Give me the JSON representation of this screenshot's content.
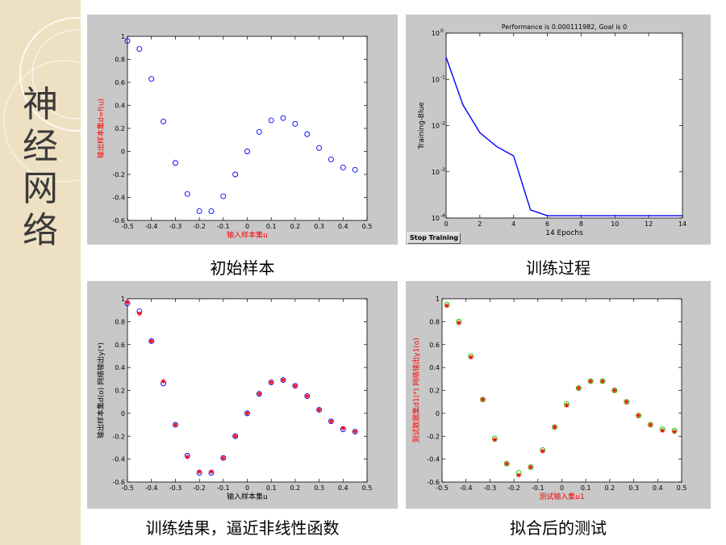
{
  "sidebar": {
    "title_chars": [
      "神",
      "经",
      "网",
      "络"
    ]
  },
  "captions": [
    "初始样本",
    "训练过程",
    "训练结果，逼近非线性函数",
    "拟合后的测试"
  ],
  "colors": {
    "sidebar_bg": "#eee0c2",
    "panel_bg": "#c8c8c8",
    "blue": "#0000ff",
    "red": "#ff0000",
    "green": "#00cc00"
  },
  "chart_data": [
    {
      "type": "scatter",
      "title": "",
      "xlabel": "输入样本集u",
      "ylabel": "输出样本集d=f(u)",
      "xlim": [
        -0.5,
        0.5
      ],
      "ylim": [
        -0.6,
        1
      ],
      "xticks": [
        -0.5,
        -0.4,
        -0.3,
        -0.2,
        -0.1,
        0,
        0.1,
        0.2,
        0.3,
        0.4,
        0.5
      ],
      "yticks": [
        -0.6,
        -0.4,
        -0.2,
        0,
        0.2,
        0.4,
        0.6,
        0.8,
        1
      ],
      "tick_labels_x": [
        "-0.5",
        "-0.4",
        "-0.3",
        "-0.2",
        "-0.1",
        "0",
        "0.1",
        "0.2",
        "0.3",
        "0.4",
        "0.5"
      ],
      "tick_labels_y": [
        "-0.6",
        "-0.4",
        "-0.2",
        "0",
        "0.2",
        "0.4",
        "0.6",
        "0.8",
        "1"
      ],
      "series": [
        {
          "marker": "circle",
          "color": "#0000ff",
          "x": [
            -0.5,
            -0.45,
            -0.4,
            -0.35,
            -0.3,
            -0.25,
            -0.2,
            -0.15,
            -0.1,
            -0.05,
            0,
            0.05,
            0.1,
            0.15,
            0.2,
            0.25,
            0.3,
            0.35,
            0.4,
            0.45
          ],
          "y": [
            0.96,
            0.89,
            0.63,
            0.26,
            -0.1,
            -0.37,
            -0.52,
            -0.52,
            -0.39,
            -0.2,
            0.0,
            0.17,
            0.27,
            0.29,
            0.24,
            0.15,
            0.03,
            -0.07,
            -0.14,
            -0.16
          ]
        }
      ]
    },
    {
      "type": "line",
      "title": "Performance is 0.000111982, Goal is 0",
      "xlabel": "14 Epochs",
      "ylabel": "Training-Blue",
      "xlim": [
        0,
        14
      ],
      "ylim": [
        0.0001,
        1
      ],
      "yscale": "log",
      "xticks": [
        0,
        2,
        4,
        6,
        8,
        10,
        12,
        14
      ],
      "tick_labels_x": [
        "0",
        "2",
        "4",
        "6",
        "8",
        "10",
        "12",
        "14"
      ],
      "yticks": [
        0.0001,
        0.001,
        0.01,
        0.1,
        1
      ],
      "tick_labels_y": [
        {
          "base": "10",
          "exp": "-4"
        },
        {
          "base": "10",
          "exp": "-3"
        },
        {
          "base": "10",
          "exp": "-2"
        },
        {
          "base": "10",
          "exp": "-1"
        },
        {
          "base": "10",
          "exp": "0"
        }
      ],
      "button_label": "Stop Training",
      "series": [
        {
          "color": "#0000ff",
          "x": [
            0,
            1,
            2,
            3,
            4,
            5,
            6,
            7,
            8,
            9,
            10,
            11,
            12,
            13,
            14
          ],
          "y": [
            0.3,
            0.028,
            0.007,
            0.0035,
            0.0022,
            0.00015,
            0.000112,
            0.000112,
            0.000112,
            0.000112,
            0.000112,
            0.000112,
            0.000112,
            0.000112,
            0.000112
          ]
        }
      ]
    },
    {
      "type": "scatter",
      "title": "",
      "xlabel": "输入样本集u",
      "ylabel": "输出样本集d(o)  网络输出y(*)",
      "xlim": [
        -0.5,
        0.5
      ],
      "ylim": [
        -0.6,
        1
      ],
      "xticks": [
        -0.5,
        -0.4,
        -0.3,
        -0.2,
        -0.1,
        0,
        0.1,
        0.2,
        0.3,
        0.4,
        0.5
      ],
      "yticks": [
        -0.6,
        -0.4,
        -0.2,
        0,
        0.2,
        0.4,
        0.6,
        0.8,
        1
      ],
      "tick_labels_x": [
        "-0.5",
        "-0.4",
        "-0.3",
        "-0.2",
        "-0.1",
        "0",
        "0.1",
        "0.2",
        "0.3",
        "0.4",
        "0.5"
      ],
      "tick_labels_y": [
        "-0.6",
        "-0.4",
        "-0.2",
        "0",
        "0.2",
        "0.4",
        "0.6",
        "0.8",
        "1"
      ],
      "series": [
        {
          "marker": "circle",
          "color": "#0000ff",
          "x": [
            -0.5,
            -0.45,
            -0.4,
            -0.35,
            -0.3,
            -0.25,
            -0.2,
            -0.15,
            -0.1,
            -0.05,
            0,
            0.05,
            0.1,
            0.15,
            0.2,
            0.25,
            0.3,
            0.35,
            0.4,
            0.45
          ],
          "y": [
            0.96,
            0.89,
            0.63,
            0.26,
            -0.1,
            -0.37,
            -0.52,
            -0.52,
            -0.39,
            -0.2,
            0.0,
            0.17,
            0.27,
            0.29,
            0.24,
            0.15,
            0.03,
            -0.07,
            -0.14,
            -0.16
          ]
        },
        {
          "marker": "star",
          "color": "#ff0000",
          "x": [
            -0.5,
            -0.45,
            -0.4,
            -0.35,
            -0.3,
            -0.25,
            -0.2,
            -0.15,
            -0.1,
            -0.05,
            0,
            0.05,
            0.1,
            0.15,
            0.2,
            0.25,
            0.3,
            0.35,
            0.4,
            0.45
          ],
          "y": [
            0.97,
            0.87,
            0.63,
            0.28,
            -0.1,
            -0.38,
            -0.51,
            -0.51,
            -0.39,
            -0.2,
            0.0,
            0.17,
            0.27,
            0.29,
            0.24,
            0.15,
            0.03,
            -0.07,
            -0.13,
            -0.16
          ]
        }
      ]
    },
    {
      "type": "scatter",
      "title": "",
      "xlabel": "测试输入集u1",
      "ylabel": "测试数据集d1(*)  网络输出y1(o)",
      "xlim": [
        -0.5,
        0.5
      ],
      "ylim": [
        -0.6,
        1
      ],
      "xticks": [
        -0.5,
        -0.4,
        -0.3,
        -0.2,
        -0.1,
        0,
        0.1,
        0.2,
        0.3,
        0.4,
        0.5
      ],
      "yticks": [
        -0.6,
        -0.4,
        -0.2,
        0,
        0.2,
        0.4,
        0.6,
        0.8,
        1
      ],
      "tick_labels_x": [
        "-0.5",
        "-0.4",
        "-0.3",
        "-0.2",
        "-0.1",
        "0",
        "0.1",
        "0.2",
        "0.3",
        "0.4",
        "0.5"
      ],
      "tick_labels_y": [
        "-0.6",
        "-0.4",
        "-0.2",
        "0",
        "0.2",
        "0.4",
        "0.6",
        "0.8",
        "1"
      ],
      "series": [
        {
          "marker": "circle",
          "color": "#00cc00",
          "x": [
            -0.48,
            -0.43,
            -0.38,
            -0.33,
            -0.28,
            -0.23,
            -0.18,
            -0.13,
            -0.08,
            -0.03,
            0.02,
            0.07,
            0.12,
            0.17,
            0.22,
            0.27,
            0.32,
            0.37,
            0.42,
            0.47
          ],
          "y": [
            0.95,
            0.8,
            0.5,
            0.12,
            -0.22,
            -0.44,
            -0.52,
            -0.47,
            -0.32,
            -0.12,
            0.08,
            0.22,
            0.28,
            0.28,
            0.2,
            0.1,
            -0.02,
            -0.1,
            -0.14,
            -0.15
          ]
        },
        {
          "marker": "star",
          "color": "#ff0000",
          "x": [
            -0.48,
            -0.43,
            -0.38,
            -0.33,
            -0.28,
            -0.23,
            -0.18,
            -0.13,
            -0.08,
            -0.03,
            0.02,
            0.07,
            0.12,
            0.17,
            0.22,
            0.27,
            0.32,
            0.37,
            0.42,
            0.47
          ],
          "y": [
            0.94,
            0.79,
            0.49,
            0.12,
            -0.23,
            -0.44,
            -0.54,
            -0.47,
            -0.33,
            -0.12,
            0.07,
            0.22,
            0.28,
            0.28,
            0.2,
            0.1,
            -0.02,
            -0.1,
            -0.15,
            -0.16
          ]
        }
      ]
    }
  ]
}
